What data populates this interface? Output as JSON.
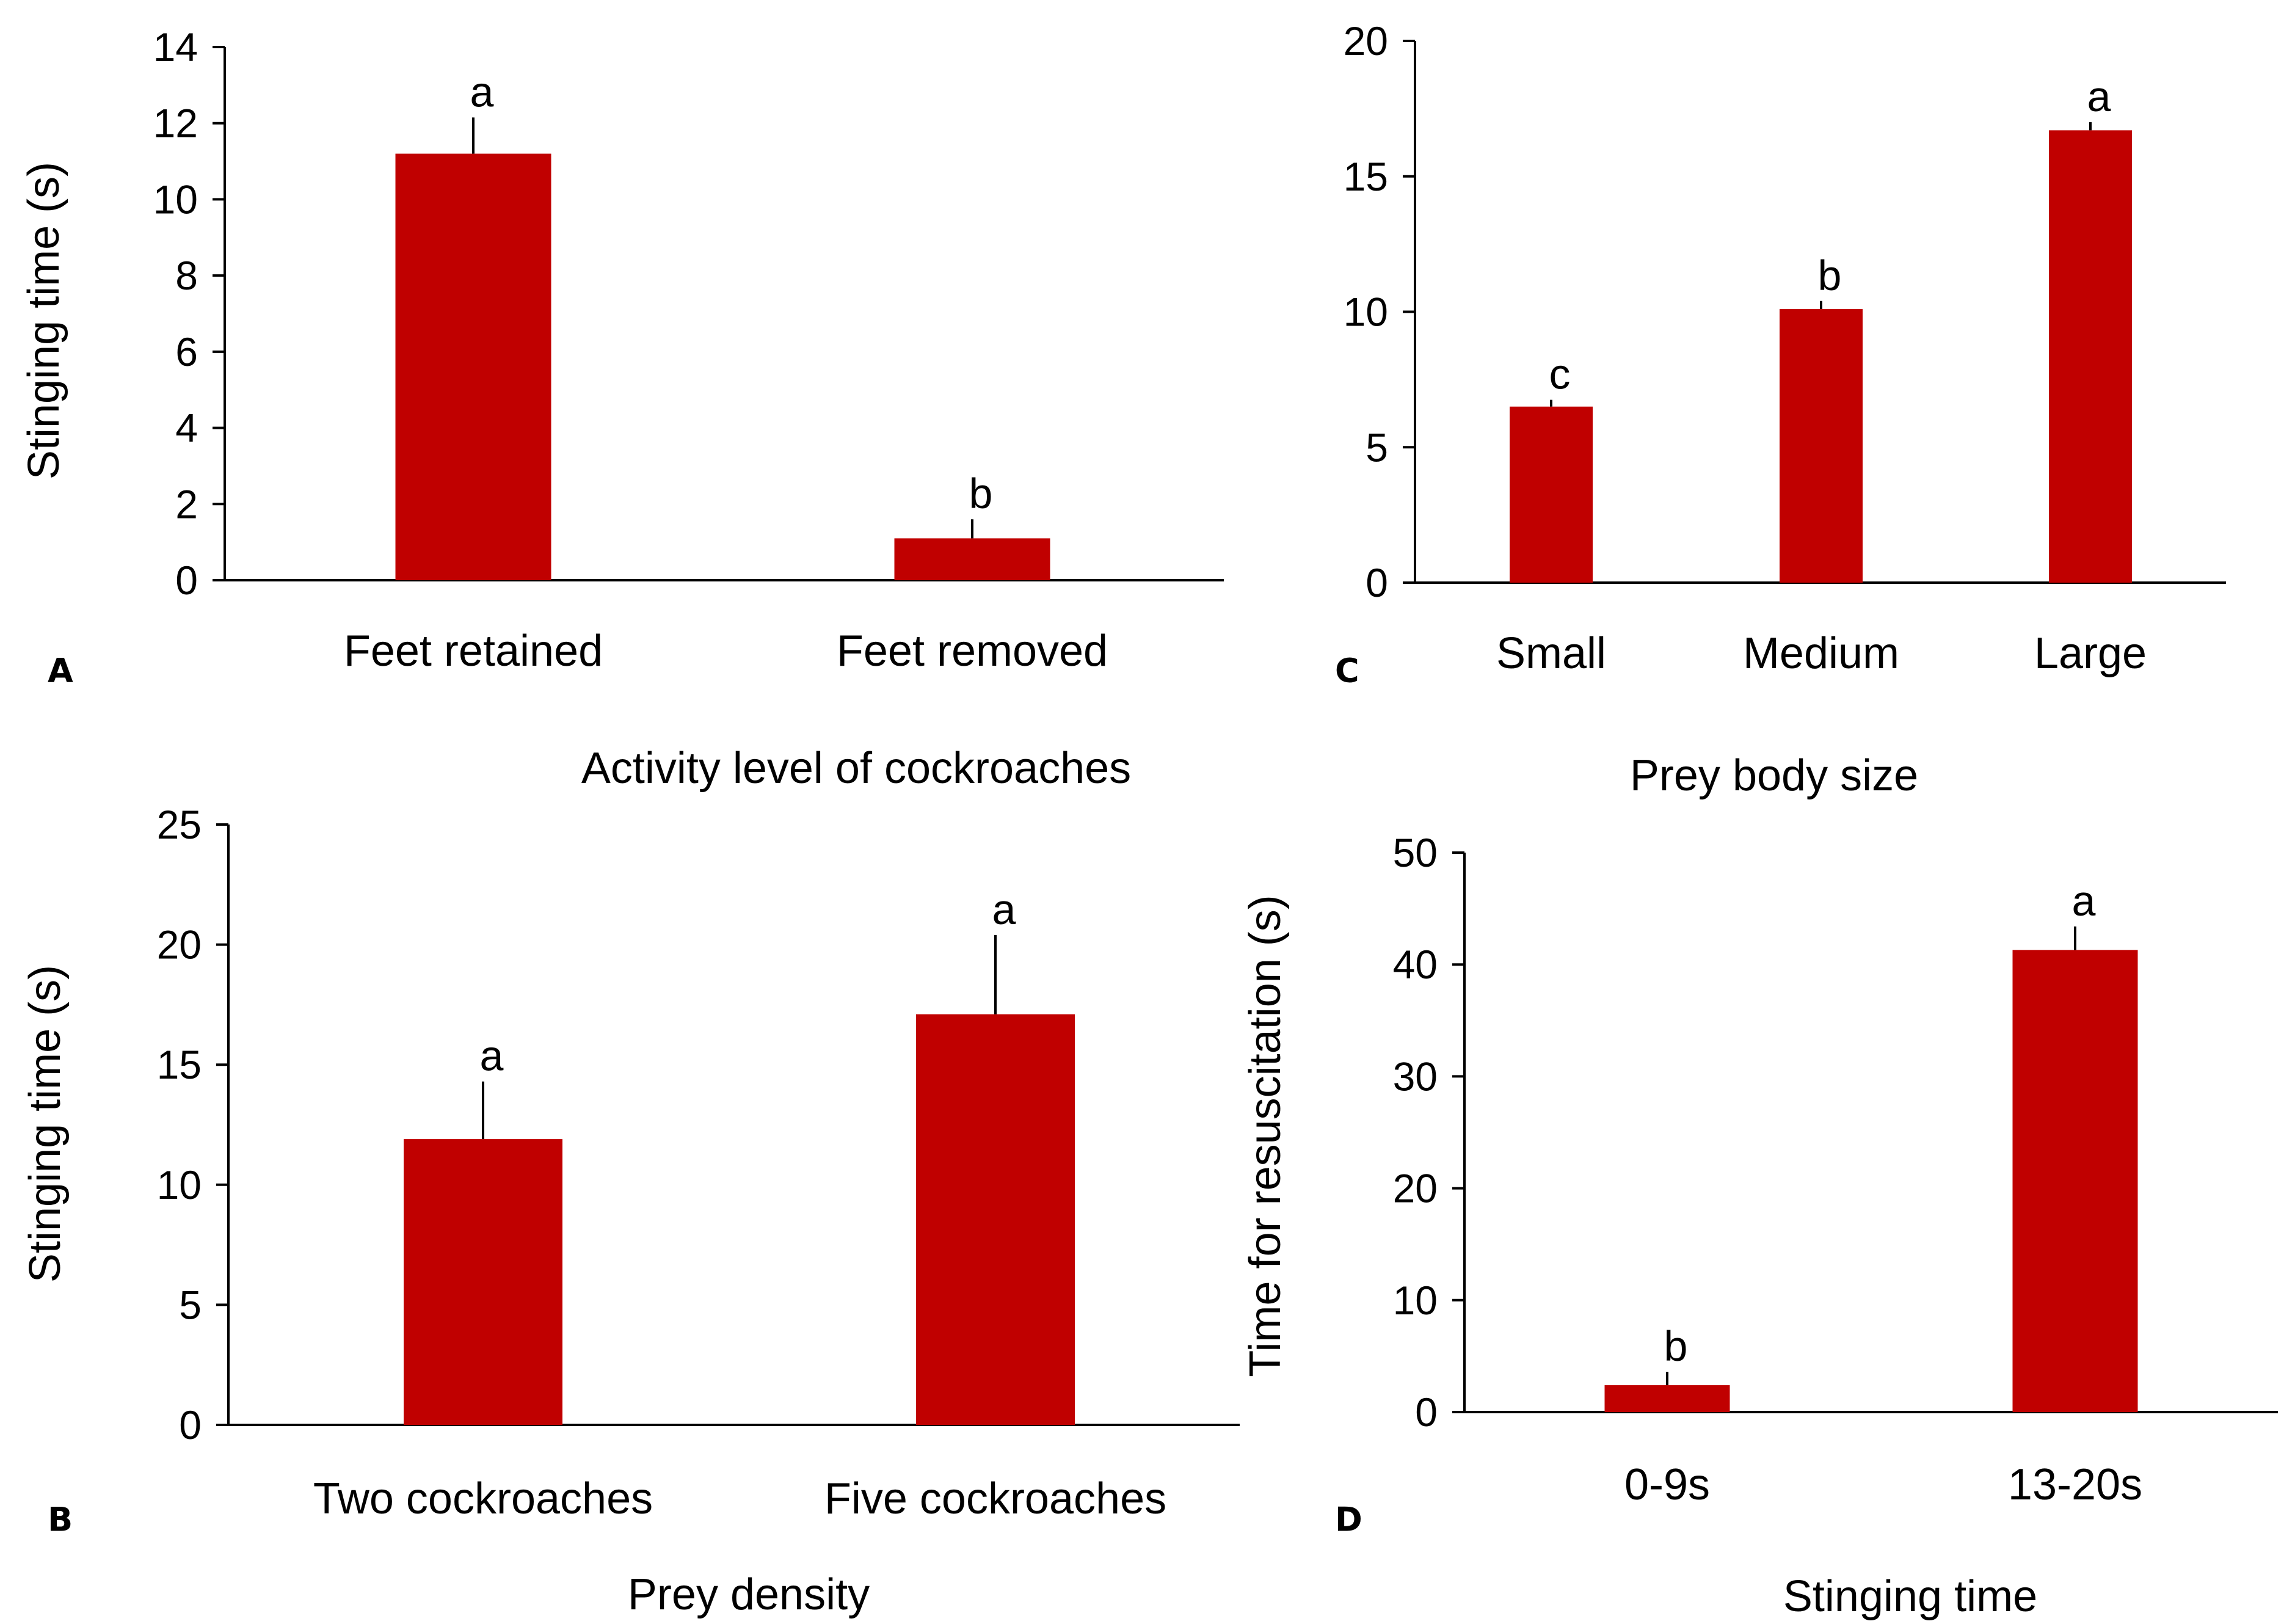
{
  "bar_color": "#C00000",
  "chart_data": [
    {
      "panel": "A",
      "type": "bar",
      "categories": [
        "Feet retained",
        "Feet removed"
      ],
      "values": [
        11.2,
        1.1
      ],
      "errors": [
        0.95,
        0.5
      ],
      "significance": [
        "a",
        "b"
      ],
      "xlabel": "Activity level of cockroaches",
      "ylabel": "Stinging time (s)",
      "ylim": [
        0,
        14
      ],
      "yticks": [
        0,
        2,
        4,
        6,
        8,
        10,
        12,
        14
      ],
      "grid": false
    },
    {
      "panel": "C",
      "type": "bar",
      "categories": [
        "Small",
        "Medium",
        "Large"
      ],
      "values": [
        6.5,
        10.1,
        16.7
      ],
      "errors": [
        0.25,
        0.3,
        0.3
      ],
      "significance": [
        "c",
        "b",
        "a"
      ],
      "xlabel": "Prey body size",
      "ylabel": "",
      "ylim": [
        0,
        20
      ],
      "yticks": [
        0,
        5,
        10,
        15,
        20
      ],
      "grid": false
    },
    {
      "panel": "B",
      "type": "bar",
      "categories": [
        "Two cockroaches",
        "Five cockroaches"
      ],
      "values": [
        11.9,
        17.1
      ],
      "errors": [
        2.4,
        3.3
      ],
      "significance": [
        "a",
        "a"
      ],
      "xlabel": "Prey density",
      "ylabel": "Stinging time (s)",
      "ylim": [
        0,
        25
      ],
      "yticks": [
        0,
        5,
        10,
        15,
        20,
        25
      ],
      "grid": false
    },
    {
      "panel": "D",
      "type": "bar",
      "categories": [
        "0-9s",
        "13-20s"
      ],
      "values": [
        2.4,
        41.3
      ],
      "errors": [
        1.2,
        2.1
      ],
      "significance": [
        "b",
        "a"
      ],
      "xlabel": "Stinging time",
      "ylabel": "Time for resuscitation (s)",
      "ylim": [
        0,
        50
      ],
      "yticks": [
        0,
        10,
        20,
        30,
        40,
        50
      ],
      "grid": false
    }
  ]
}
